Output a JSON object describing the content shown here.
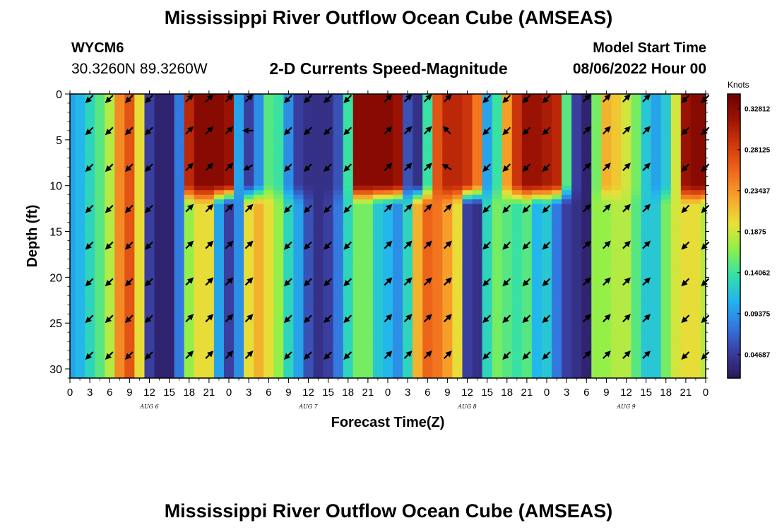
{
  "header": {
    "title": "Mississippi River Outflow Ocean Cube (AMSEAS)",
    "station_id": "WYCM6",
    "station_coords": "30.3260N  89.3260W",
    "model_start_label": "Model Start Time",
    "model_start_value": "08/06/2022 Hour 00"
  },
  "footer": {
    "title": "Mississippi River Outflow Ocean Cube (AMSEAS)"
  },
  "chart_data": {
    "type": "heatmap",
    "title": "2-D Currents Speed-Magnitude",
    "xlabel": "Forecast Time(Z)",
    "ylabel": "Depth (ft)",
    "x_hours_range": [
      0,
      96
    ],
    "x_tick_step_hours": 3,
    "x_tick_labels": [
      "0",
      "3",
      "6",
      "9",
      "12",
      "15",
      "18",
      "21",
      "0",
      "3",
      "6",
      "9",
      "12",
      "15",
      "18",
      "21",
      "0",
      "3",
      "6",
      "9",
      "12",
      "15",
      "18",
      "21",
      "0",
      "3",
      "6",
      "9",
      "12",
      "15",
      "18",
      "21",
      "0"
    ],
    "day_labels": [
      {
        "text": "AUG 6",
        "hour": 12
      },
      {
        "text": "AUG 7",
        "hour": 36
      },
      {
        "text": "AUG 8",
        "hour": 60
      },
      {
        "text": "AUG 9",
        "hour": 84
      }
    ],
    "y_range_ft": [
      0,
      31
    ],
    "y_tick_values": [
      0,
      5,
      10,
      15,
      20,
      25,
      30
    ],
    "y_tick_labels": [
      "0",
      "5",
      "10",
      "15",
      "20",
      "25",
      "30"
    ],
    "colorbar": {
      "unit": "Knots",
      "min": 0.02,
      "max": 0.345,
      "tick_values": [
        0.32812,
        0.28125,
        0.23437,
        0.1875,
        0.14062,
        0.09375,
        0.04687
      ],
      "tick_labels": [
        "0.32812",
        "0.28125",
        "0.23437",
        "0.1875",
        "0.14062",
        "0.09375",
        "0.04687"
      ],
      "colors": [
        "#2b1758",
        "#3a3d9e",
        "#3377e0",
        "#22b5ee",
        "#33e0a8",
        "#8ef04a",
        "#e7e23a",
        "#f7a42a",
        "#f06a1c",
        "#d23a0c",
        "#a01505",
        "#700000"
      ]
    },
    "time_hours": [
      0,
      1.5,
      3,
      4.5,
      6,
      7.5,
      9,
      10.5,
      12,
      13.5,
      15,
      16.5,
      18,
      19.5,
      21,
      22.5,
      24,
      25.5,
      27,
      28.5,
      30,
      31.5,
      33,
      34.5,
      36,
      37.5,
      39,
      40.5,
      42,
      43.5,
      45,
      46.5,
      48,
      49.5,
      51,
      52.5,
      54,
      55.5,
      57,
      58.5,
      60,
      61.5,
      63,
      64.5,
      66,
      67.5,
      69,
      70.5,
      72,
      73.5,
      75,
      76.5,
      78,
      79.5,
      81,
      82.5,
      84,
      85.5,
      87,
      88.5,
      90,
      91.5,
      93,
      94.5,
      96
    ],
    "depths_ft": [
      0,
      10,
      12,
      31
    ],
    "speed_knots_shallow": [
      0.1,
      0.11,
      0.13,
      0.15,
      0.18,
      0.24,
      0.27,
      0.2,
      0.05,
      0.03,
      0.03,
      0.08,
      0.3,
      0.33,
      0.33,
      0.33,
      0.32,
      0.1,
      0.05,
      0.09,
      0.15,
      0.14,
      0.09,
      0.05,
      0.04,
      0.04,
      0.04,
      0.06,
      0.14,
      0.33,
      0.33,
      0.33,
      0.33,
      0.32,
      0.06,
      0.04,
      0.14,
      0.27,
      0.3,
      0.3,
      0.29,
      0.25,
      0.1,
      0.14,
      0.23,
      0.29,
      0.32,
      0.32,
      0.31,
      0.3,
      0.15,
      0.05,
      0.03,
      0.16,
      0.22,
      0.21,
      0.19,
      0.16,
      0.12,
      0.1,
      0.12,
      0.19,
      0.32,
      0.33,
      0.33
    ],
    "speed_knots_deep": [
      0.1,
      0.11,
      0.13,
      0.15,
      0.18,
      0.24,
      0.27,
      0.2,
      0.05,
      0.03,
      0.03,
      0.08,
      0.17,
      0.2,
      0.2,
      0.1,
      0.05,
      0.09,
      0.2,
      0.22,
      0.2,
      0.17,
      0.13,
      0.1,
      0.06,
      0.04,
      0.05,
      0.08,
      0.13,
      0.16,
      0.16,
      0.12,
      0.11,
      0.09,
      0.13,
      0.22,
      0.26,
      0.25,
      0.23,
      0.2,
      0.05,
      0.04,
      0.13,
      0.16,
      0.15,
      0.14,
      0.15,
      0.11,
      0.12,
      0.08,
      0.05,
      0.04,
      0.03,
      0.17,
      0.17,
      0.18,
      0.18,
      0.15,
      0.12,
      0.12,
      0.16,
      0.19,
      0.2,
      0.2,
      0.18
    ],
    "vector_depths_ft": [
      0.5,
      4,
      8,
      12.5,
      16.5,
      20.5,
      24.5,
      28.5
    ],
    "vector_times_hours": [
      3,
      6,
      9,
      12,
      18,
      21,
      24,
      27,
      33,
      36,
      39,
      42,
      48,
      51,
      54,
      57,
      63,
      66,
      69,
      72,
      78,
      81,
      84,
      87,
      93,
      96
    ],
    "vector_directions_deg": [
      [
        225,
        225,
        225,
        225,
        45,
        45,
        45,
        45,
        225,
        225,
        225,
        225,
        45,
        45,
        45,
        45,
        225,
        225,
        225,
        225,
        45,
        45,
        45,
        45,
        225,
        225
      ],
      [
        225,
        225,
        225,
        225,
        45,
        45,
        45,
        270,
        225,
        225,
        225,
        225,
        45,
        45,
        45,
        315,
        225,
        225,
        225,
        225,
        45,
        45,
        45,
        45,
        225,
        225
      ],
      [
        225,
        225,
        225,
        225,
        45,
        45,
        45,
        240,
        225,
        225,
        225,
        225,
        45,
        45,
        45,
        300,
        225,
        225,
        225,
        225,
        45,
        45,
        45,
        45,
        225,
        225
      ],
      [
        225,
        225,
        225,
        225,
        45,
        45,
        45,
        45,
        225,
        225,
        225,
        225,
        45,
        45,
        45,
        45,
        225,
        225,
        225,
        225,
        45,
        45,
        45,
        45,
        225,
        225
      ],
      [
        225,
        225,
        225,
        225,
        45,
        45,
        45,
        45,
        225,
        225,
        225,
        225,
        45,
        45,
        45,
        45,
        225,
        225,
        225,
        225,
        45,
        45,
        45,
        45,
        225,
        225
      ],
      [
        225,
        225,
        225,
        225,
        45,
        45,
        45,
        45,
        225,
        225,
        225,
        225,
        45,
        45,
        45,
        45,
        225,
        225,
        225,
        225,
        45,
        45,
        45,
        45,
        225,
        225
      ],
      [
        225,
        225,
        225,
        225,
        45,
        45,
        45,
        45,
        225,
        225,
        225,
        225,
        45,
        45,
        45,
        45,
        225,
        225,
        225,
        225,
        45,
        45,
        45,
        45,
        225,
        225
      ],
      [
        225,
        225,
        225,
        225,
        45,
        45,
        45,
        45,
        225,
        225,
        225,
        225,
        45,
        45,
        45,
        45,
        225,
        225,
        225,
        225,
        45,
        45,
        45,
        45,
        225,
        225
      ]
    ]
  }
}
